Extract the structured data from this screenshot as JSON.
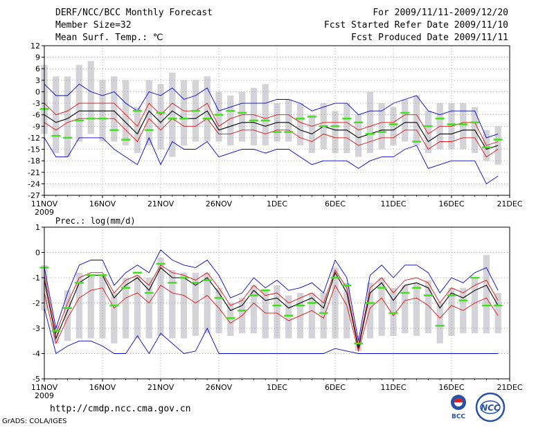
{
  "header": {
    "title": "DERF/NCC/BCC Monthly Forecast",
    "member_size": "Member Size=32",
    "variable": "Mean Surf. Temp.: ℃",
    "period": "For 2009/11/11-2009/12/20",
    "started": "Fcst Started Refer Date 2009/11/10",
    "produced": "Fcst Produced Date 2009/11/11"
  },
  "footer": {
    "url": "http://cmdp.ncc.cma.gov.cn",
    "credit": "GrADS: COLA/IGES",
    "logo_bcc": "BCC",
    "logo_ncc": "NCC"
  },
  "colors": {
    "box": "#d3d3d8",
    "mean": "#000000",
    "spread": "#dd1111",
    "range": "#0000cc",
    "obs": "#44dd22"
  },
  "chart_data": [
    {
      "type": "line",
      "name": "temperature",
      "xlabels": [
        "11NOV",
        "16NOV",
        "21NOV",
        "26NOV",
        "1DEC",
        "6DEC",
        "11DEC",
        "16DEC",
        "21DEC"
      ],
      "xlabel_sub": "2009",
      "yticks": [
        12,
        9,
        6,
        3,
        0,
        -3,
        -6,
        -9,
        -12,
        -15,
        -18,
        -21,
        -24,
        -27
      ],
      "ylim": [
        -27,
        12
      ],
      "days": 40,
      "series": [
        {
          "name": "max",
          "values": [
            2,
            -1,
            -1,
            2,
            0,
            -1,
            0,
            -3,
            -5,
            0,
            -1,
            1,
            -2,
            -1,
            1,
            -5,
            -4,
            -3,
            -3,
            -3,
            -2,
            -2,
            -3,
            -5,
            -4,
            -3,
            -3,
            -6,
            -5,
            -5,
            -3,
            -2,
            -1,
            -5,
            -6,
            -5,
            -5,
            -5,
            -12,
            -11
          ]
        },
        {
          "name": "spread_upper",
          "values": [
            -3,
            -6,
            -5,
            -3,
            -3,
            -3,
            -3,
            -6,
            -9,
            -3,
            -6,
            -3,
            -5,
            -5,
            -3,
            -9,
            -7,
            -6,
            -6,
            -7,
            -6,
            -6,
            -8,
            -9,
            -8,
            -8,
            -8,
            -10,
            -9,
            -8,
            -8,
            -6,
            -6,
            -11,
            -9,
            -9,
            -8,
            -8,
            -14,
            -13
          ]
        },
        {
          "name": "mean",
          "values": [
            -6,
            -8,
            -7,
            -5,
            -5,
            -5,
            -5,
            -8,
            -11,
            -5,
            -8,
            -5,
            -7,
            -7,
            -5,
            -10,
            -9,
            -8,
            -8,
            -9,
            -8,
            -8,
            -10,
            -11,
            -9,
            -10,
            -10,
            -12,
            -11,
            -10,
            -10,
            -8,
            -8,
            -13,
            -11,
            -11,
            -10,
            -10,
            -15,
            -14
          ]
        },
        {
          "name": "spread_lower",
          "values": [
            -8,
            -10,
            -8,
            -7,
            -7,
            -7,
            -7,
            -10,
            -13,
            -7,
            -10,
            -7,
            -9,
            -9,
            -7,
            -11,
            -11,
            -10,
            -10,
            -11,
            -10,
            -10,
            -12,
            -13,
            -11,
            -12,
            -12,
            -14,
            -13,
            -12,
            -12,
            -10,
            -10,
            -15,
            -13,
            -13,
            -12,
            -12,
            -17,
            -15
          ]
        },
        {
          "name": "min",
          "values": [
            -12,
            -17,
            -17,
            -12,
            -12,
            -12,
            -15,
            -17,
            -19,
            -12,
            -19,
            -13,
            -15,
            -15,
            -13,
            -17,
            -16,
            -15,
            -15,
            -16,
            -15,
            -15,
            -17,
            -19,
            -18,
            -18,
            -18,
            -20,
            -18,
            -17,
            -17,
            -15,
            -14,
            -20,
            -19,
            -18,
            -18,
            -18,
            -24,
            -22
          ]
        },
        {
          "name": "box_top",
          "values": [
            7,
            4,
            4,
            7,
            8,
            3,
            4,
            3,
            -4,
            3,
            2,
            5,
            3,
            3,
            4,
            0,
            -1,
            0,
            1,
            2,
            -3,
            -2,
            -3,
            -6,
            -3,
            -5,
            -3,
            -6,
            0,
            -3,
            -4,
            -2,
            -1,
            -5,
            -3,
            -3,
            -3,
            -4,
            -10,
            -9
          ]
        },
        {
          "name": "box_bottom",
          "values": [
            -11,
            -16,
            -17,
            -13,
            -11,
            -13,
            -13,
            -14,
            -16,
            -14,
            -15,
            -17,
            -14,
            -13,
            -13,
            -13,
            -14,
            -13,
            -14,
            -14,
            -13,
            -13,
            -14,
            -16,
            -15,
            -16,
            -16,
            -17,
            -16,
            -15,
            -14,
            -13,
            -14,
            -16,
            -15,
            -15,
            -15,
            -16,
            -18,
            -19
          ]
        },
        {
          "name": "observed",
          "values": [
            -4.5,
            -11.5,
            -12,
            -7.5,
            -7,
            -7,
            -10,
            -12.5,
            -5,
            -10,
            -5.5,
            -7,
            -7,
            -5,
            -7,
            -6,
            -5,
            -5.5,
            -7.5,
            -7.5,
            -10.5,
            -10.5,
            -7,
            -6.5,
            -9,
            -9,
            -7,
            -8,
            -11,
            -10.5,
            -8.5,
            -5.5,
            -13,
            -9,
            -7,
            -8.5,
            -8.5,
            -8,
            -14.5,
            -12.5
          ]
        }
      ]
    },
    {
      "type": "line",
      "name": "precipitation",
      "title": "Prec.: log(mm/d)",
      "xlabels": [
        "11NOV",
        "16NOV",
        "21NOV",
        "26NOV",
        "1DEC",
        "6DEC",
        "11DEC",
        "16DEC",
        "21DEC"
      ],
      "xlabel_sub": "2009",
      "yticks": [
        1,
        0,
        -1,
        -2,
        -3,
        -4,
        -5
      ],
      "ylim": [
        -5,
        1
      ],
      "days": 40,
      "series": [
        {
          "name": "max",
          "values": [
            -0.6,
            -3.0,
            -1.6,
            -0.5,
            -0.3,
            -0.3,
            -1.3,
            -0.8,
            -0.5,
            -0.8,
            0.1,
            -0.3,
            -0.5,
            -0.6,
            -0.3,
            -0.9,
            -1.8,
            -1.6,
            -1.0,
            -1.4,
            -1.1,
            -1.5,
            -1.4,
            -1.2,
            -1.6,
            -0.3,
            -1.0,
            -3.5,
            -0.9,
            -0.5,
            -1.0,
            -0.5,
            -0.5,
            -0.8,
            -1.6,
            -1.0,
            -1.2,
            -0.8,
            -0.6,
            -1.5
          ]
        },
        {
          "name": "spread_upper",
          "values": [
            -0.9,
            -3.2,
            -2.0,
            -1.0,
            -0.8,
            -0.8,
            -1.6,
            -1.1,
            -0.9,
            -1.3,
            -0.5,
            -0.8,
            -0.9,
            -1.1,
            -0.8,
            -1.4,
            -2.1,
            -1.9,
            -1.3,
            -1.7,
            -1.6,
            -2.0,
            -1.8,
            -1.6,
            -2.0,
            -0.7,
            -1.4,
            -3.7,
            -1.4,
            -1.0,
            -1.6,
            -1.1,
            -1.0,
            -1.2,
            -2.0,
            -1.4,
            -1.6,
            -1.3,
            -1.1,
            -1.9
          ]
        },
        {
          "name": "mean",
          "values": [
            -1.1,
            -3.4,
            -2.3,
            -1.2,
            -0.9,
            -0.9,
            -1.8,
            -1.3,
            -1.0,
            -1.5,
            -0.6,
            -1.0,
            -1.0,
            -1.3,
            -1.0,
            -1.6,
            -2.3,
            -2.1,
            -1.5,
            -1.9,
            -1.8,
            -2.2,
            -2.0,
            -1.8,
            -2.2,
            -0.8,
            -1.6,
            -3.8,
            -1.6,
            -1.2,
            -1.9,
            -1.3,
            -1.2,
            -1.4,
            -2.2,
            -1.6,
            -1.8,
            -1.5,
            -1.3,
            -2.1
          ]
        },
        {
          "name": "spread_lower",
          "values": [
            -1.6,
            -3.6,
            -2.6,
            -1.8,
            -1.5,
            -1.4,
            -2.2,
            -1.8,
            -1.6,
            -2.0,
            -1.3,
            -1.6,
            -1.7,
            -2.0,
            -1.7,
            -2.2,
            -2.8,
            -2.5,
            -2.0,
            -2.4,
            -2.4,
            -2.7,
            -2.5,
            -2.3,
            -2.6,
            -1.3,
            -2.1,
            -3.9,
            -2.2,
            -1.8,
            -2.5,
            -1.9,
            -1.8,
            -2.1,
            -2.6,
            -2.1,
            -2.3,
            -2.0,
            -1.8,
            -2.5
          ]
        },
        {
          "name": "min",
          "values": [
            -2.2,
            -4.0,
            -3.7,
            -3.5,
            -3.5,
            -3.7,
            -4.0,
            -4.0,
            -3.3,
            -4.0,
            -3.2,
            -3.6,
            -4.0,
            -3.9,
            -3.0,
            -4.0,
            -4.0,
            -4.0,
            -4.0,
            -4.0,
            -4.0,
            -4.0,
            -4.0,
            -4.0,
            -4.0,
            -3.8,
            -3.9,
            -4.0,
            -4.0,
            -4.0,
            -4.0,
            -4.0,
            -4.0,
            -4.0,
            -4.0,
            -4.0,
            -4.0,
            -4.0,
            -4.0,
            -4.0
          ]
        },
        {
          "name": "box_top",
          "values": [
            -0.5,
            -2.9,
            -1.5,
            -0.8,
            -0.9,
            -0.9,
            -1.6,
            -1.0,
            -0.9,
            -1.0,
            -0.2,
            -0.7,
            -0.8,
            -0.8,
            -0.8,
            -1.4,
            -2.0,
            -1.8,
            -1.3,
            -1.5,
            -1.3,
            -1.7,
            -1.6,
            -1.6,
            -1.6,
            -0.6,
            -1.2,
            -3.5,
            -1.2,
            -1.0,
            -1.4,
            -1.3,
            -1.2,
            -1.1,
            -2.0,
            -1.4,
            -1.4,
            -1.0,
            -0.1,
            -1.6
          ]
        },
        {
          "name": "box_bottom",
          "values": [
            -2.3,
            -3.6,
            -3.5,
            -3.4,
            -3.4,
            -3.4,
            -3.6,
            -3.4,
            -3.4,
            -3.4,
            -3.3,
            -3.4,
            -3.4,
            -3.3,
            -3.2,
            -3.2,
            -3.3,
            -3.2,
            -3.2,
            -3.4,
            -3.4,
            -3.4,
            -3.4,
            -3.4,
            -3.4,
            -3.4,
            -3.4,
            -3.9,
            -3.4,
            -3.3,
            -3.3,
            -3.2,
            -3.3,
            -3.2,
            -3.6,
            -3.3,
            -3.2,
            -3.2,
            -3.2,
            -3.2
          ]
        },
        {
          "name": "observed",
          "values": [
            -0.6,
            -3.1,
            -2.2,
            -1.2,
            -0.9,
            -0.9,
            -2.1,
            -1.4,
            -0.8,
            -1.6,
            -0.45,
            -1.2,
            -1.0,
            -1.2,
            -1.1,
            -1.8,
            -2.6,
            -2.3,
            -1.7,
            -1.5,
            -2.1,
            -2.5,
            -2.1,
            -2.0,
            -2.4,
            -1.0,
            -1.3,
            -3.6,
            -2.0,
            -1.4,
            -2.4,
            -1.6,
            -1.4,
            -1.7,
            -2.9,
            -1.7,
            -1.9,
            -1.0,
            -2.1,
            -2.1
          ]
        }
      ]
    }
  ]
}
